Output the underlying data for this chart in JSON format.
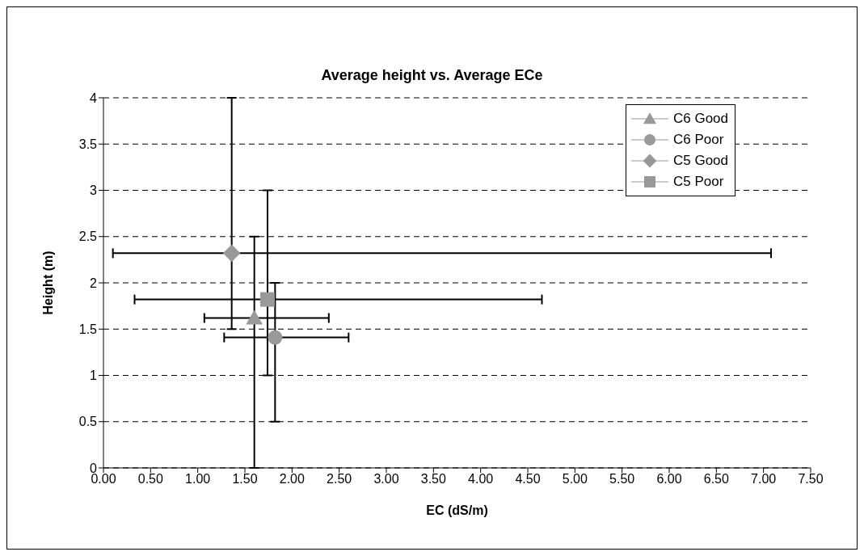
{
  "chart_data": {
    "type": "scatter",
    "title": "Average height vs. Average ECe",
    "xlabel": "EC (dS/m)",
    "ylabel": "Height (m)",
    "series": [
      {
        "name": "C6 Good",
        "color": "#999999",
        "marker": "triangle",
        "x": [
          1.6
        ],
        "values": [
          1.62
        ],
        "errors": [
          [
            0,
            2.5
          ]
        ],
        "xerrors": [
          [
            1.07,
            2.39
          ]
        ]
      },
      {
        "name": "C6 Poor",
        "color": "#999999",
        "marker": "circle",
        "x": [
          1.82
        ],
        "values": [
          1.41
        ],
        "errors": [
          [
            0.5,
            2.0
          ]
        ],
        "xerrors": [
          [
            1.28,
            2.6
          ]
        ]
      },
      {
        "name": "C5 Good",
        "color": "#999999",
        "marker": "diamond",
        "x": [
          1.36
        ],
        "values": [
          2.32
        ],
        "errors": [
          [
            1.5,
            4.0
          ]
        ],
        "xerrors": [
          [
            0.1,
            7.08
          ]
        ]
      },
      {
        "name": "C5 Poor",
        "color": "#999999",
        "marker": "square",
        "x": [
          1.74
        ],
        "values": [
          1.82
        ],
        "errors": [
          [
            1.0,
            3.0
          ]
        ],
        "xerrors": [
          [
            0.33,
            4.65
          ]
        ]
      }
    ],
    "xlim": [
      0,
      7.5
    ],
    "xticks": [
      {
        "value": 0,
        "label": "0.00"
      },
      {
        "value": 0.5,
        "label": "0.50"
      },
      {
        "value": 1,
        "label": "1.00"
      },
      {
        "value": 1.5,
        "label": "1.50"
      },
      {
        "value": 2,
        "label": "2.00"
      },
      {
        "value": 2.5,
        "label": "2.50"
      },
      {
        "value": 3,
        "label": "3.00"
      },
      {
        "value": 3.5,
        "label": "3.50"
      },
      {
        "value": 4,
        "label": "4.00"
      },
      {
        "value": 4.5,
        "label": "4.50"
      },
      {
        "value": 5,
        "label": "5.00"
      },
      {
        "value": 5.5,
        "label": "5.50"
      },
      {
        "value": 6,
        "label": "6.00"
      },
      {
        "value": 6.5,
        "label": "6.50"
      },
      {
        "value": 7,
        "label": "7.00"
      },
      {
        "value": 7.5,
        "label": "7.50"
      }
    ],
    "ylim": [
      0,
      4
    ],
    "yticks": [
      0,
      0.5,
      1,
      1.5,
      2,
      2.5,
      3,
      3.5,
      4
    ],
    "grid": "y",
    "legend": "top right",
    "line_style": "dashed"
  }
}
